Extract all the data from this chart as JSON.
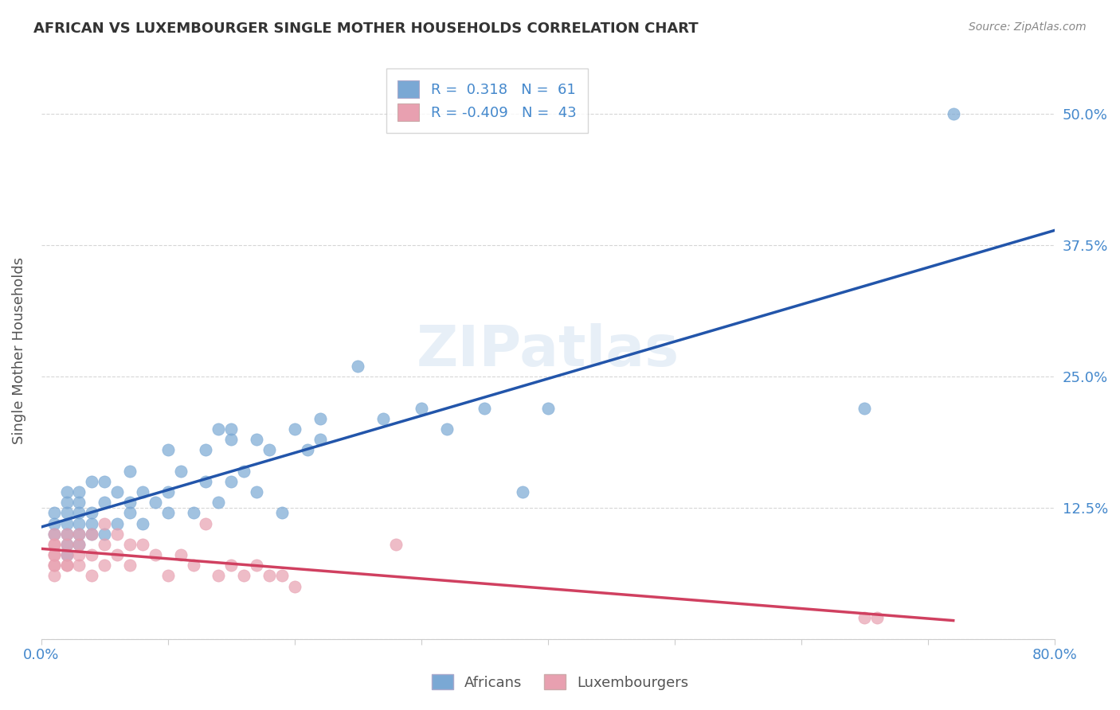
{
  "title": "AFRICAN VS LUXEMBOURGER SINGLE MOTHER HOUSEHOLDS CORRELATION CHART",
  "source": "Source: ZipAtlas.com",
  "ylabel": "Single Mother Households",
  "xlabel": "",
  "xlim": [
    0.0,
    0.8
  ],
  "ylim": [
    0.0,
    0.55
  ],
  "xticks": [
    0.0,
    0.1,
    0.2,
    0.3,
    0.4,
    0.5,
    0.6,
    0.7,
    0.8
  ],
  "xticklabels": [
    "0.0%",
    "",
    "",
    "",
    "",
    "",
    "",
    "",
    "80.0%"
  ],
  "ytick_positions": [
    0.0,
    0.125,
    0.25,
    0.375,
    0.5
  ],
  "ytick_labels": [
    "",
    "12.5%",
    "25.0%",
    "37.5%",
    "50.0%"
  ],
  "blue_R": 0.318,
  "blue_N": 61,
  "pink_R": -0.409,
  "pink_N": 43,
  "blue_color": "#7aa8d4",
  "pink_color": "#e8a0b0",
  "blue_line_color": "#2255aa",
  "pink_line_color": "#d04060",
  "watermark": "ZIPatlas",
  "background_color": "#ffffff",
  "grid_color": "#cccccc",
  "title_color": "#333333",
  "axis_label_color": "#4488cc",
  "blue_scatter_x": [
    0.01,
    0.01,
    0.01,
    0.02,
    0.02,
    0.02,
    0.02,
    0.02,
    0.02,
    0.02,
    0.03,
    0.03,
    0.03,
    0.03,
    0.03,
    0.03,
    0.04,
    0.04,
    0.04,
    0.04,
    0.05,
    0.05,
    0.05,
    0.06,
    0.06,
    0.07,
    0.07,
    0.07,
    0.08,
    0.08,
    0.09,
    0.1,
    0.1,
    0.1,
    0.11,
    0.12,
    0.13,
    0.13,
    0.14,
    0.14,
    0.15,
    0.15,
    0.15,
    0.16,
    0.17,
    0.17,
    0.18,
    0.19,
    0.2,
    0.21,
    0.22,
    0.22,
    0.25,
    0.27,
    0.3,
    0.32,
    0.35,
    0.38,
    0.4,
    0.65,
    0.72
  ],
  "blue_scatter_y": [
    0.1,
    0.11,
    0.12,
    0.08,
    0.09,
    0.1,
    0.11,
    0.12,
    0.13,
    0.14,
    0.09,
    0.1,
    0.11,
    0.12,
    0.13,
    0.14,
    0.1,
    0.11,
    0.12,
    0.15,
    0.1,
    0.13,
    0.15,
    0.11,
    0.14,
    0.12,
    0.13,
    0.16,
    0.11,
    0.14,
    0.13,
    0.12,
    0.14,
    0.18,
    0.16,
    0.12,
    0.15,
    0.18,
    0.13,
    0.2,
    0.15,
    0.19,
    0.2,
    0.16,
    0.14,
    0.19,
    0.18,
    0.12,
    0.2,
    0.18,
    0.19,
    0.21,
    0.26,
    0.21,
    0.22,
    0.2,
    0.22,
    0.14,
    0.22,
    0.22,
    0.5
  ],
  "pink_scatter_x": [
    0.01,
    0.01,
    0.01,
    0.01,
    0.01,
    0.01,
    0.01,
    0.01,
    0.02,
    0.02,
    0.02,
    0.02,
    0.02,
    0.03,
    0.03,
    0.03,
    0.03,
    0.04,
    0.04,
    0.04,
    0.05,
    0.05,
    0.05,
    0.06,
    0.06,
    0.07,
    0.07,
    0.08,
    0.09,
    0.1,
    0.11,
    0.12,
    0.13,
    0.14,
    0.15,
    0.16,
    0.17,
    0.18,
    0.19,
    0.2,
    0.28,
    0.65,
    0.66
  ],
  "pink_scatter_y": [
    0.06,
    0.07,
    0.07,
    0.08,
    0.08,
    0.09,
    0.09,
    0.1,
    0.07,
    0.07,
    0.08,
    0.09,
    0.1,
    0.07,
    0.08,
    0.09,
    0.1,
    0.06,
    0.08,
    0.1,
    0.07,
    0.09,
    0.11,
    0.08,
    0.1,
    0.07,
    0.09,
    0.09,
    0.08,
    0.06,
    0.08,
    0.07,
    0.11,
    0.06,
    0.07,
    0.06,
    0.07,
    0.06,
    0.06,
    0.05,
    0.09,
    0.02,
    0.02
  ]
}
